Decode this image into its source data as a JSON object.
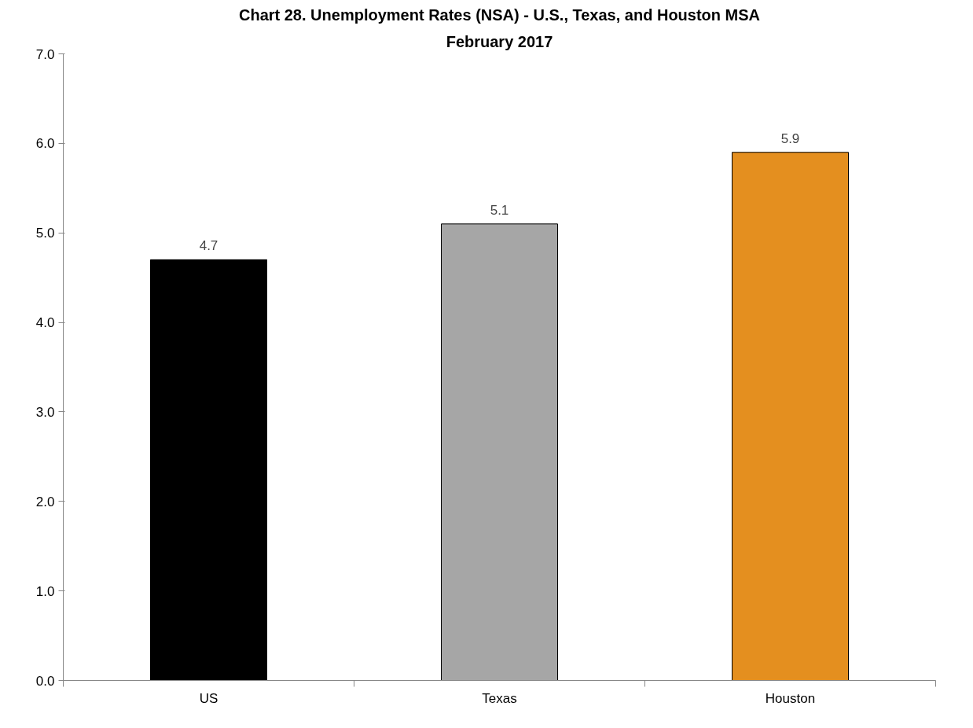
{
  "chart_data": {
    "type": "bar",
    "title": "Chart 28. Unemployment Rates (NSA) - U.S., Texas, and Houston MSA",
    "subtitle": "February 2017",
    "categories": [
      "US",
      "Texas",
      "Houston"
    ],
    "values": [
      4.7,
      5.1,
      5.9
    ],
    "colors": [
      "#000000",
      "#a6a6a6",
      "#e48f1f"
    ],
    "ylim": [
      0,
      7
    ],
    "yticks": [
      {
        "value": 0,
        "label": "0.0"
      },
      {
        "value": 1,
        "label": "1.0"
      },
      {
        "value": 2,
        "label": "2.0"
      },
      {
        "value": 3,
        "label": "3.0"
      },
      {
        "value": 4,
        "label": "4.0"
      },
      {
        "value": 5,
        "label": "5.0"
      },
      {
        "value": 6,
        "label": "6.0"
      },
      {
        "value": 7,
        "label": "7.0"
      }
    ],
    "data_labels": true,
    "grid": false
  }
}
